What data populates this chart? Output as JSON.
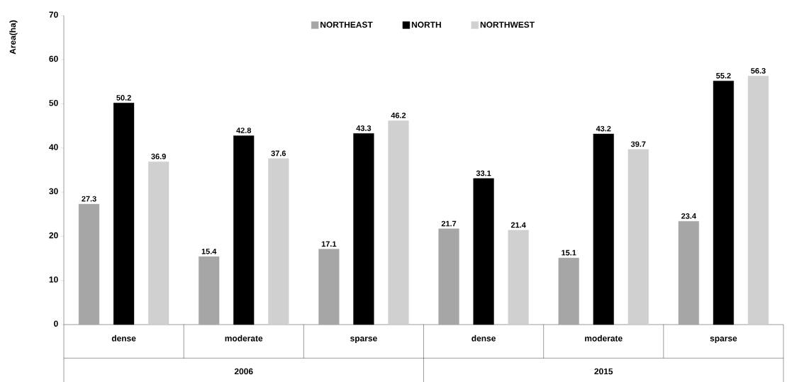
{
  "chart_data": {
    "type": "bar",
    "ylabel": "Area(ha)",
    "categories": [
      "dense",
      "moderate",
      "sparse",
      "dense",
      "moderate",
      "sparse"
    ],
    "series": [
      {
        "name": "NORTHEAST",
        "color": "#a6a6a6",
        "values": [
          27.3,
          15.4,
          17.1,
          21.7,
          15.1,
          23.4
        ]
      },
      {
        "name": "NORTH",
        "color": "#000000",
        "values": [
          50.2,
          42.8,
          43.3,
          33.1,
          43.2,
          55.2
        ]
      },
      {
        "name": "NORTHWEST",
        "color": "#d0d0d0",
        "values": [
          36.9,
          37.6,
          46.2,
          21.4,
          39.7,
          56.3
        ]
      }
    ],
    "annotations": [
      "2006",
      "2015"
    ],
    "ylim": [
      0,
      70
    ],
    "yticks": [
      0,
      10,
      20,
      30,
      40,
      50,
      60,
      70
    ],
    "grid": false,
    "legend": "top",
    "data_labels": true
  }
}
